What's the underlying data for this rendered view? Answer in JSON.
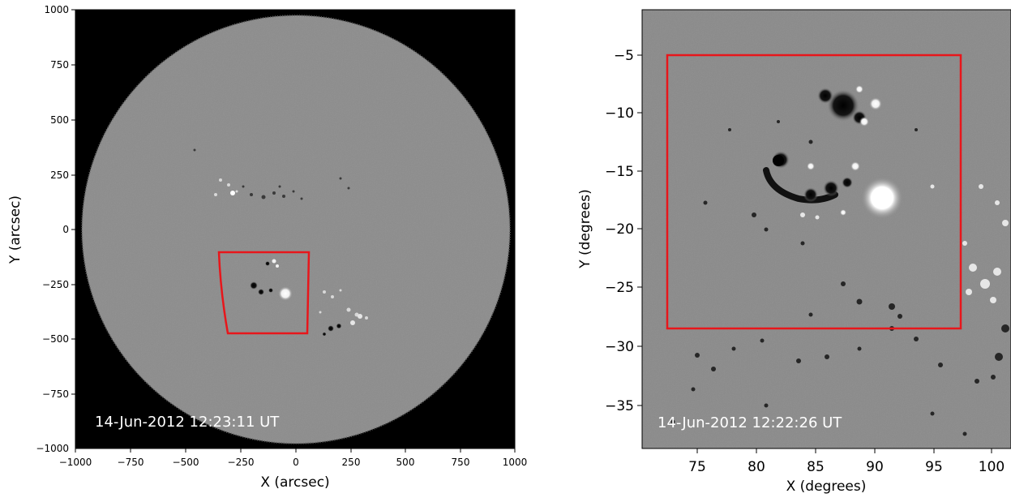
{
  "panels": [
    {
      "id": "full-disk",
      "timestamp": "14-Jun-2012 12:23:11 UT",
      "xlabel": "X (arcsec)",
      "ylabel": "Y (arcsec)",
      "xticks": [
        "−1000",
        "−750",
        "−500",
        "−250",
        "0",
        "250",
        "500",
        "750",
        "1000"
      ],
      "yticks": [
        "1000",
        "750",
        "500",
        "250",
        "0",
        "−250",
        "−500",
        "−750",
        "−1000"
      ]
    },
    {
      "id": "zoom",
      "timestamp": "14-Jun-2012 12:22:26 UT",
      "xlabel": "X (degrees)",
      "ylabel": "Y (degrees)",
      "xticks": [
        "75",
        "80",
        "85",
        "90",
        "95",
        "100"
      ],
      "yticks": [
        "−5",
        "−10",
        "−15",
        "−20",
        "−25",
        "−30",
        "−35"
      ]
    }
  ],
  "colors": {
    "background": "#000000",
    "disk": "#8c8c8c",
    "box": "#e8161b",
    "label": "#ffffff"
  }
}
